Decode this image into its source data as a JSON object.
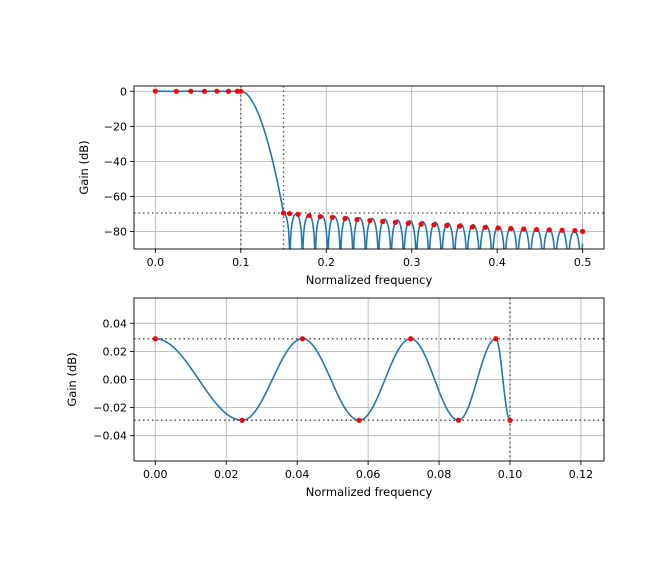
{
  "chart_data": [
    {
      "type": "line",
      "xlabel": "Normalized frequency",
      "ylabel": "Gain (dB)",
      "xlim": [
        -0.025,
        0.525
      ],
      "ylim": [
        -90,
        3
      ],
      "xticks": [
        0.0,
        0.1,
        0.2,
        0.3,
        0.4,
        0.5
      ],
      "xtick_labels": [
        "0.0",
        "0.1",
        "0.2",
        "0.3",
        "0.4",
        "0.5"
      ],
      "yticks": [
        0,
        -20,
        -40,
        -60,
        -80
      ],
      "ytick_labels": [
        "0",
        "−20",
        "−40",
        "−60",
        "−80"
      ],
      "grid": true,
      "line_color": "#1f77b4",
      "marker_color": "#ff0000",
      "guide_color": "#555555",
      "passband_edge": 0.1,
      "stopband_edge": 0.15,
      "stopband_level_db": -69.5,
      "extremal_points": {
        "x": [
          0.0,
          0.0245,
          0.0415,
          0.0575,
          0.072,
          0.0855,
          0.096,
          0.1,
          0.15,
          0.157,
          0.167,
          0.18,
          0.193,
          0.207,
          0.222,
          0.236,
          0.251,
          0.266,
          0.281,
          0.296,
          0.311,
          0.326,
          0.341,
          0.356,
          0.371,
          0.386,
          0.401,
          0.416,
          0.431,
          0.446,
          0.461,
          0.476,
          0.491,
          0.5
        ],
        "y": [
          0.029,
          -0.029,
          0.029,
          -0.029,
          0.029,
          -0.029,
          0.029,
          -0.029,
          -69.5,
          -69.8,
          -70.2,
          -71.0,
          -71.5,
          -72.0,
          -72.6,
          -73.2,
          -73.8,
          -74.3,
          -74.8,
          -75.3,
          -75.8,
          -76.2,
          -76.6,
          -77.0,
          -77.4,
          -77.7,
          -78.0,
          -78.3,
          -78.6,
          -78.9,
          -79.1,
          -79.3,
          -79.5,
          -80.0
        ]
      }
    },
    {
      "type": "line",
      "xlabel": "Normalized frequency",
      "ylabel": "Gain (dB)",
      "xlim": [
        -0.006,
        0.1265
      ],
      "ylim": [
        -0.058,
        0.058
      ],
      "xticks": [
        0.0,
        0.02,
        0.04,
        0.06,
        0.08,
        0.1,
        0.12
      ],
      "xtick_labels": [
        "0.00",
        "0.02",
        "0.04",
        "0.06",
        "0.08",
        "0.10",
        "0.12"
      ],
      "yticks": [
        0.04,
        0.02,
        0.0,
        -0.02,
        -0.04
      ],
      "ytick_labels": [
        "0.04",
        "0.02",
        "0.00",
        "−0.02",
        "−0.04"
      ],
      "grid": true,
      "line_color": "#1f77b4",
      "marker_color": "#ff0000",
      "guide_color": "#555555",
      "passband_edge": 0.1,
      "ripple_db": 0.029,
      "extremal_points": {
        "x": [
          0.0,
          0.0245,
          0.0415,
          0.0575,
          0.072,
          0.0855,
          0.096,
          0.1
        ],
        "y": [
          0.029,
          -0.029,
          0.029,
          -0.029,
          0.029,
          -0.029,
          0.029,
          -0.029
        ]
      }
    }
  ]
}
